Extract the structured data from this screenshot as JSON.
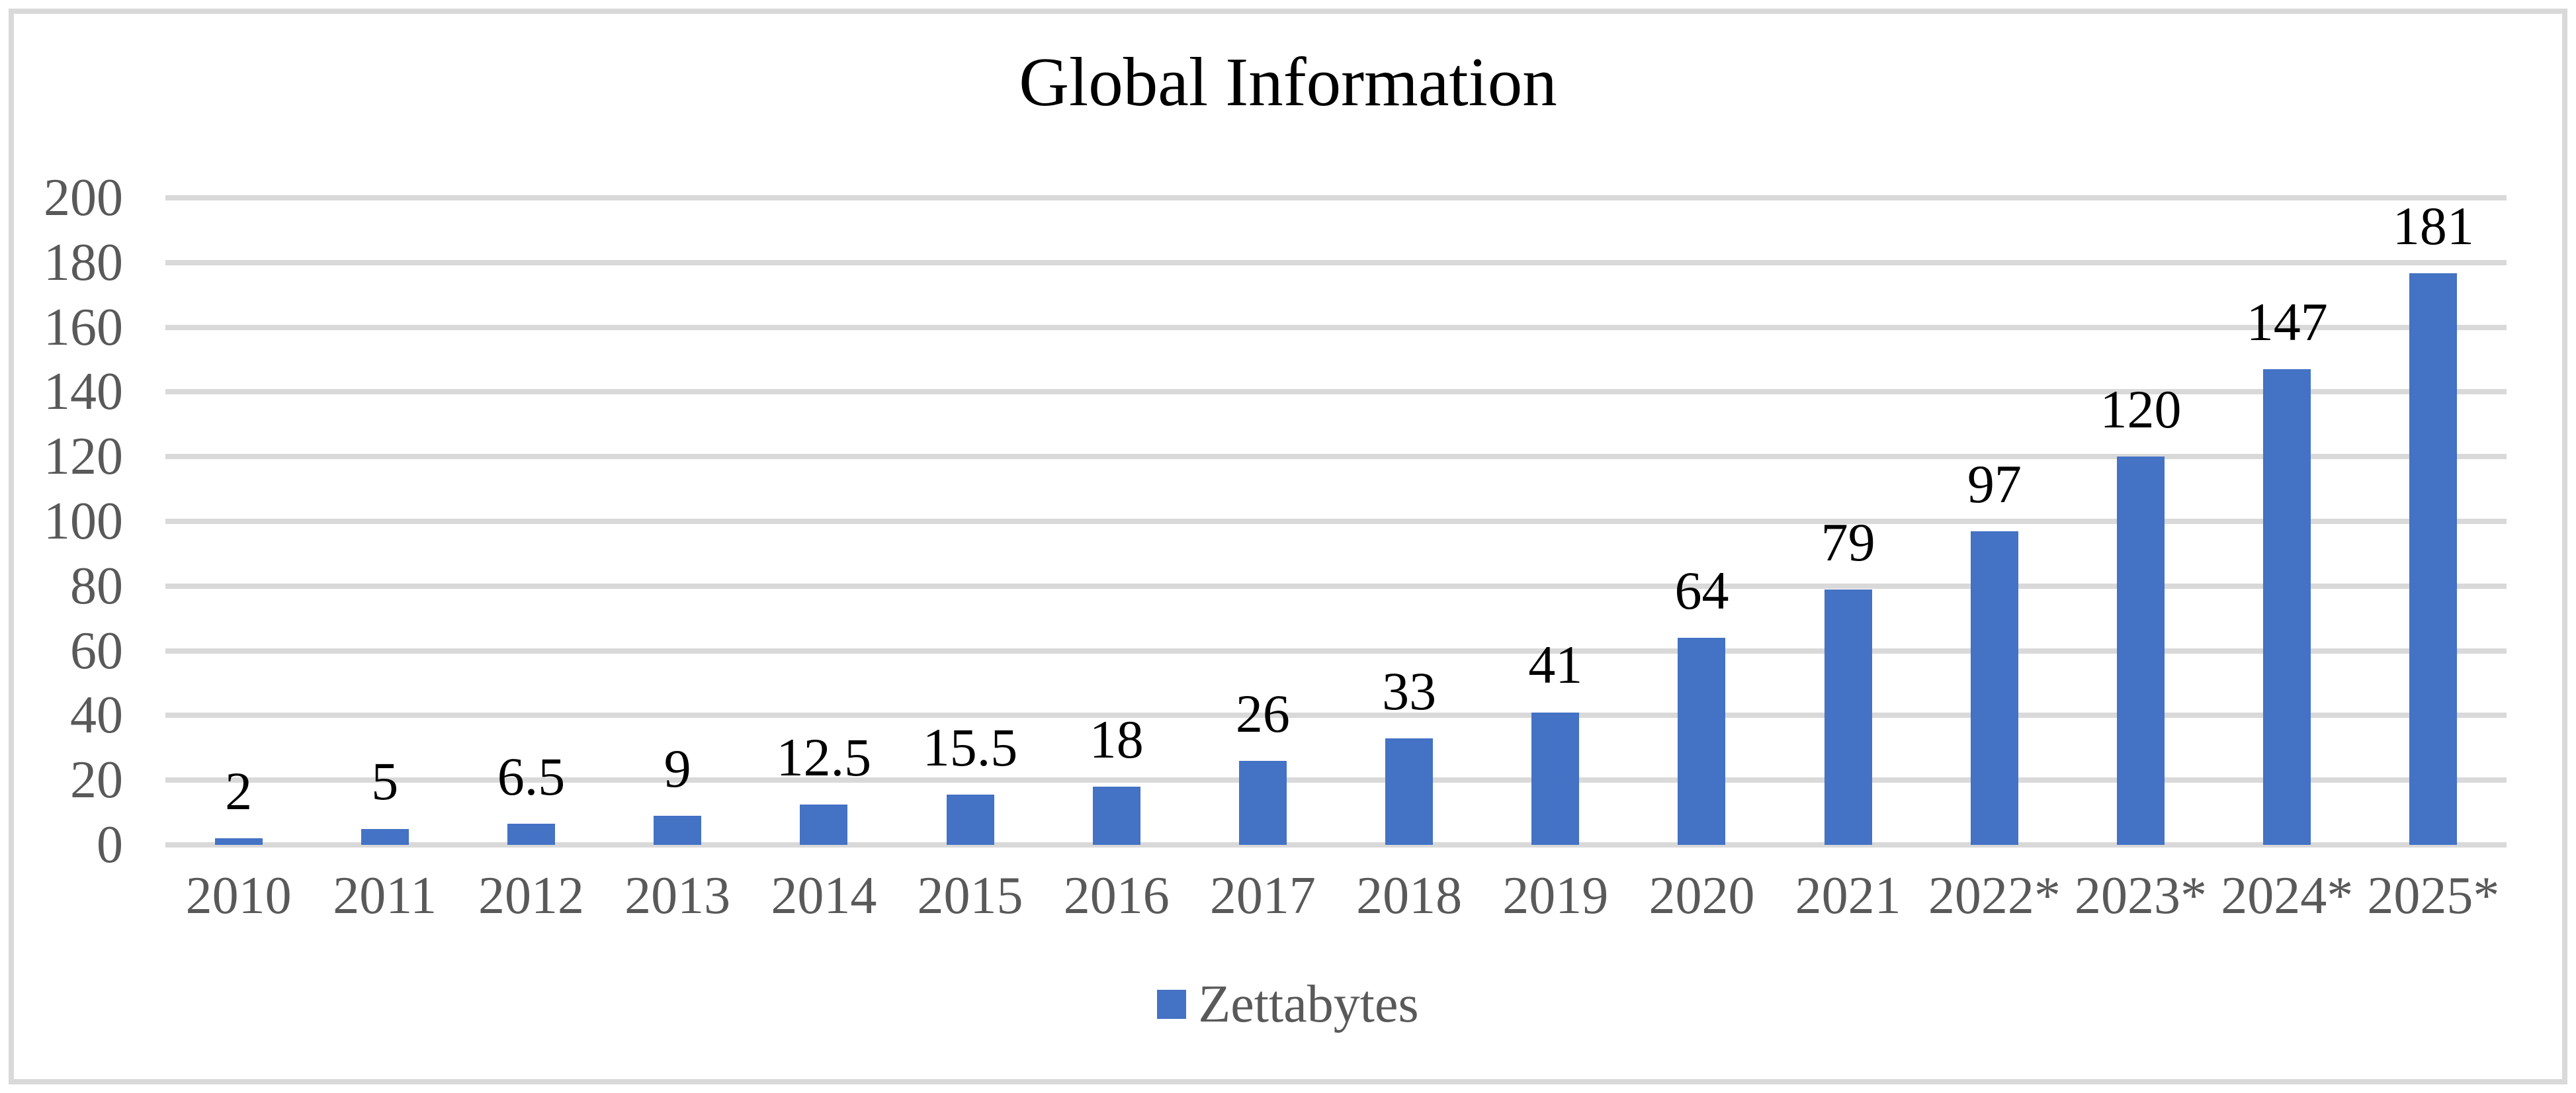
{
  "title": "Global Information",
  "legend": {
    "label": "Zettabytes"
  },
  "colors": {
    "bar": "#4472C4",
    "gridline": "#D9D9D9",
    "axis_text": "#595959",
    "data_label": "#000000",
    "title_text": "#000000",
    "frame_border": "#D9D9D9",
    "background": "#FFFFFF"
  },
  "chart_data": {
    "type": "bar",
    "title": "Global Information",
    "series_name": "Zettabytes",
    "categories": [
      "2010",
      "2011",
      "2012",
      "2013",
      "2014",
      "2015",
      "2016",
      "2017",
      "2018",
      "2019",
      "2020",
      "2021",
      "2022*",
      "2023*",
      "2024*",
      "2025*"
    ],
    "values": [
      2,
      5,
      6.5,
      9,
      12.5,
      15.5,
      18,
      26,
      33,
      41,
      64,
      79,
      97,
      120,
      147,
      181
    ],
    "xlabel": "",
    "ylabel": "",
    "ylim": [
      0,
      200
    ],
    "y_tick_step": 20,
    "y_ticks": [
      "0",
      "20",
      "40",
      "60",
      "80",
      "100",
      "120",
      "140",
      "160",
      "180",
      "200"
    ],
    "grid": "horizontal",
    "legend_position": "bottom-center",
    "data_labels": "outside-end"
  }
}
